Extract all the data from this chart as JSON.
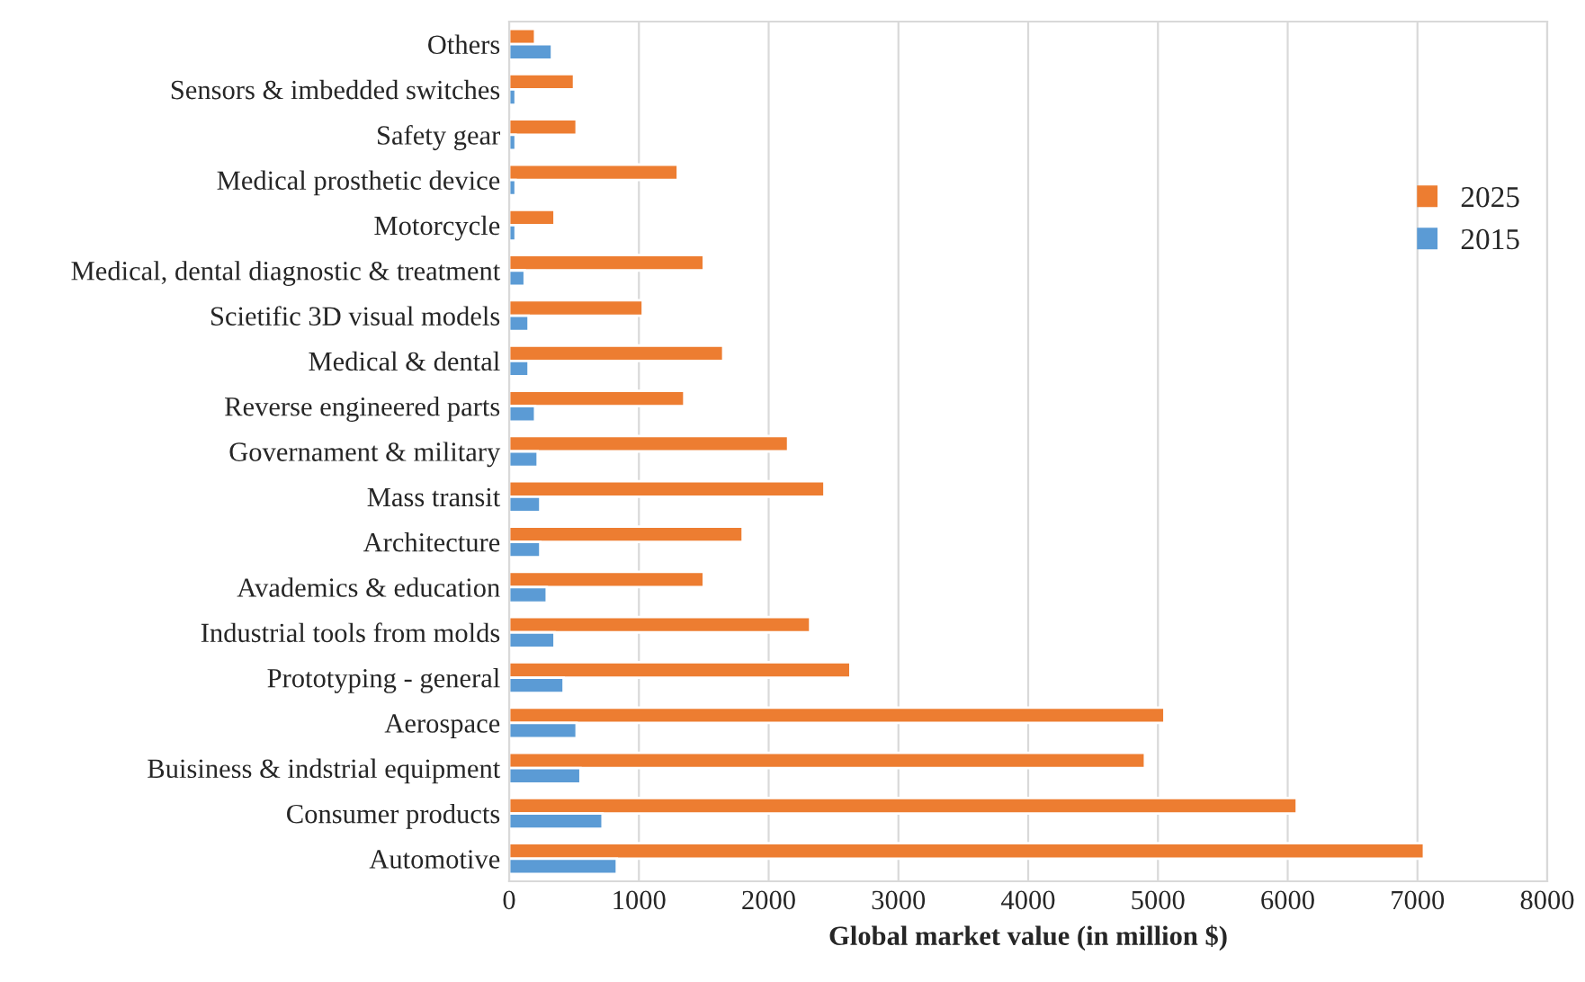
{
  "chart_data": {
    "type": "bar",
    "orientation": "horizontal",
    "xlabel": "Global market value (in million $)",
    "categories": [
      "Others",
      "Sensors & imbedded switches",
      "Safety gear",
      "Medical prosthetic device",
      "Motorcycle",
      "Medical, dental diagnostic & treatment",
      "Scietific 3D visual models",
      "Medical & dental",
      "Reverse engineered parts",
      "Governament & military",
      "Mass transit",
      "Architecture",
      "Avademics & education",
      "Industrial tools from molds",
      "Prototyping - general",
      "Aerospace",
      "Buisiness & indstrial equipment",
      "Consumer products",
      "Automotive"
    ],
    "series": [
      {
        "name": "2025",
        "color": "#ed7d31",
        "values": [
          200,
          500,
          520,
          1300,
          350,
          1500,
          1030,
          1650,
          1350,
          2150,
          2430,
          1800,
          1500,
          2320,
          2630,
          5050,
          4900,
          6070,
          7050
        ]
      },
      {
        "name": "2015",
        "color": "#5b9bd5",
        "values": [
          330,
          50,
          50,
          50,
          50,
          120,
          150,
          150,
          200,
          220,
          240,
          240,
          290,
          350,
          420,
          520,
          550,
          720,
          830
        ]
      }
    ],
    "xlim": [
      0,
      8000
    ],
    "xticks": [
      0,
      1000,
      2000,
      3000,
      4000,
      5000,
      6000,
      7000,
      8000
    ],
    "grid": "x",
    "legend": "right"
  }
}
